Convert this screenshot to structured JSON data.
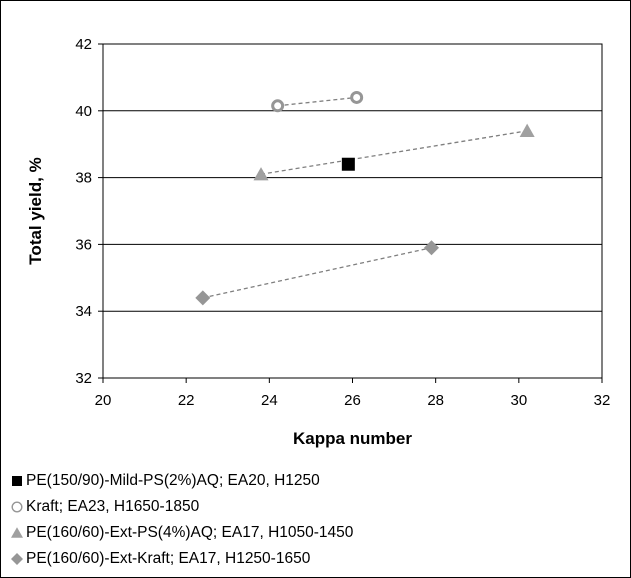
{
  "chart_data": {
    "type": "scatter",
    "title": "",
    "xlabel": "Kappa number",
    "ylabel": "Total yield, %",
    "xlim": [
      20,
      32
    ],
    "ylim": [
      32,
      42
    ],
    "xticks": [
      "20",
      "22",
      "24",
      "26",
      "28",
      "30",
      "32"
    ],
    "yticks": [
      "32",
      "34",
      "36",
      "38",
      "40",
      "42"
    ],
    "grid": "horizontal major gridlines",
    "legend_position": "bottom",
    "series": [
      {
        "name": "PE(150/90)-Mild-PS(2%)AQ; EA20, H1250",
        "marker": "filled-square",
        "color": "#000000",
        "connected": false,
        "x": [
          25.9
        ],
        "y": [
          38.4
        ]
      },
      {
        "name": "Kraft; EA23, H1650-1850",
        "marker": "open-circle",
        "color": "#969696",
        "connected": true,
        "x": [
          24.2,
          26.1
        ],
        "y": [
          40.15,
          40.4
        ]
      },
      {
        "name": "PE(160/60)-Ext-PS(4%)AQ; EA17, H1050-1450",
        "marker": "triangle",
        "color": "#a0a0a0",
        "connected": true,
        "x": [
          23.8,
          30.2
        ],
        "y": [
          38.1,
          39.4
        ]
      },
      {
        "name": "PE(160/60)-Ext-Kraft; EA17, H1250-1650",
        "marker": "diamond",
        "color": "#969696",
        "connected": true,
        "x": [
          22.4,
          27.9
        ],
        "y": [
          34.4,
          35.9
        ]
      }
    ]
  }
}
